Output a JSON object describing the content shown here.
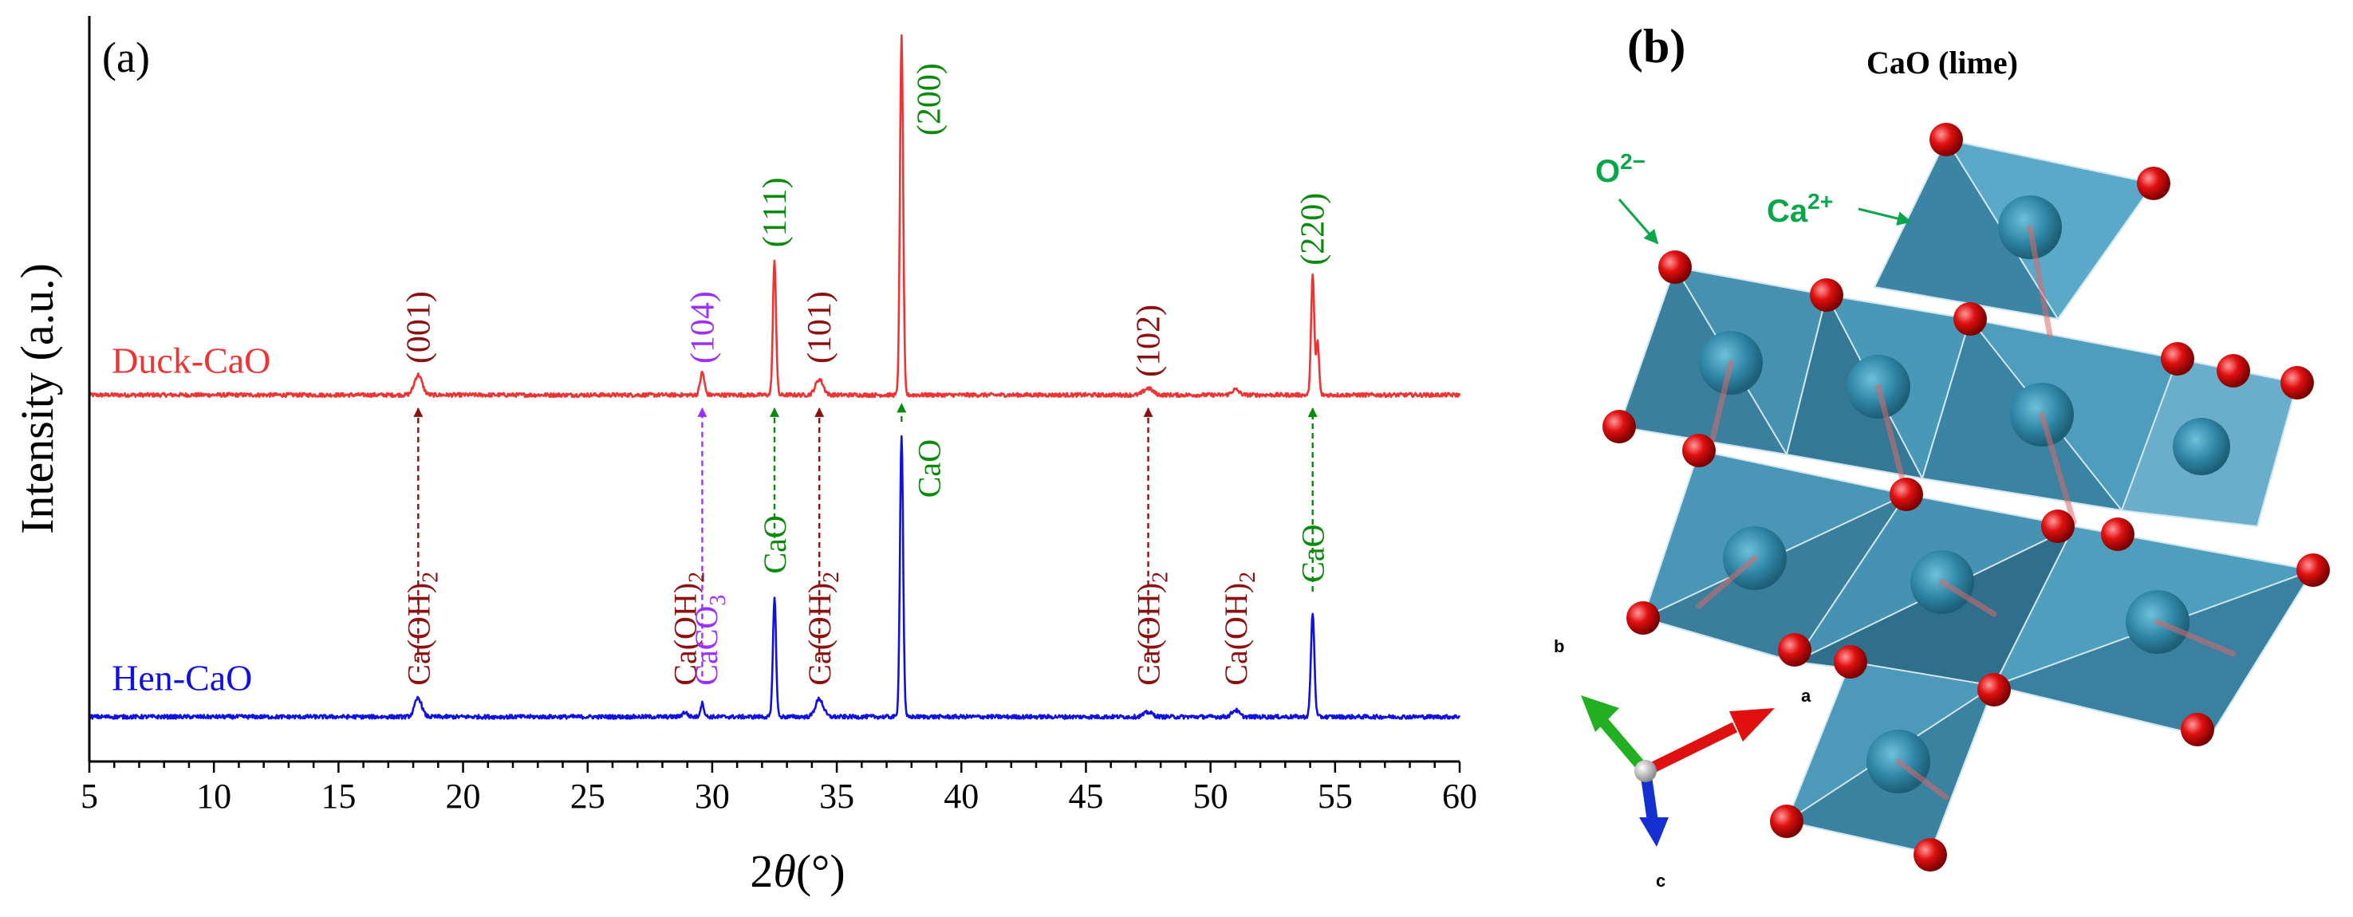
{
  "colors": {
    "duck": "#ee3333",
    "hen": "#1010e0",
    "caoth": "#8b1010",
    "calcite": "#9b30ff",
    "lime": "#0a8a0a",
    "axis": "#000000",
    "octa": "#3f8fb0",
    "oxygen": "#dd1010"
  },
  "chart_data": {
    "type": "line",
    "panel_label": "(a)",
    "xlabel": "2θ(°)",
    "ylabel": "Intensity (a.u.)",
    "xlim": [
      5,
      60
    ],
    "ylim": [
      -0.1,
      1.55
    ],
    "xticks": [
      "5",
      "10",
      "15",
      "20",
      "25",
      "30",
      "35",
      "40",
      "45",
      "50",
      "55",
      "60"
    ],
    "series": [
      {
        "name": "Duck-CaO",
        "color": "duck",
        "baseline": 0.72,
        "peaks": [
          {
            "x": 18.2,
            "h": 0.045,
            "w": 0.22
          },
          {
            "x": 29.6,
            "h": 0.05,
            "w": 0.12
          },
          {
            "x": 32.5,
            "h": 0.3,
            "w": 0.09
          },
          {
            "x": 34.3,
            "h": 0.035,
            "w": 0.22
          },
          {
            "x": 37.6,
            "h": 0.8,
            "w": 0.09
          },
          {
            "x": 47.5,
            "h": 0.015,
            "w": 0.25
          },
          {
            "x": 51.0,
            "h": 0.012,
            "w": 0.2
          },
          {
            "x": 54.1,
            "h": 0.27,
            "w": 0.09
          },
          {
            "x": 54.3,
            "h": 0.12,
            "w": 0.08
          }
        ]
      },
      {
        "name": "Hen-CaO",
        "color": "hen",
        "baseline": 0.0,
        "peaks": [
          {
            "x": 18.2,
            "h": 0.042,
            "w": 0.2
          },
          {
            "x": 28.9,
            "h": 0.01,
            "w": 0.15
          },
          {
            "x": 29.6,
            "h": 0.03,
            "w": 0.1
          },
          {
            "x": 32.5,
            "h": 0.265,
            "w": 0.09
          },
          {
            "x": 34.3,
            "h": 0.04,
            "w": 0.22
          },
          {
            "x": 37.6,
            "h": 0.63,
            "w": 0.09
          },
          {
            "x": 47.5,
            "h": 0.01,
            "w": 0.25
          },
          {
            "x": 51.0,
            "h": 0.015,
            "w": 0.2
          },
          {
            "x": 54.1,
            "h": 0.23,
            "w": 0.1
          }
        ]
      }
    ],
    "series_labels": [
      {
        "text": "Duck-CaO",
        "color": "duck",
        "x": 5.9,
        "y": 0.77
      },
      {
        "text": "Hen-CaO",
        "color": "hen",
        "x": 5.9,
        "y": 0.06
      }
    ],
    "arrows": [
      {
        "x": 18.2,
        "color": "caoth",
        "y1": 0.1,
        "y2": 0.69
      },
      {
        "x": 29.6,
        "color": "calcite",
        "y1": 0.09,
        "y2": 0.69
      },
      {
        "x": 32.5,
        "color": "lime",
        "y1": 0.4,
        "y2": 0.69
      },
      {
        "x": 34.3,
        "color": "caoth",
        "y1": 0.1,
        "y2": 0.69
      },
      {
        "x": 37.6,
        "color": "lime",
        "y1": 0.66,
        "y2": 0.7
      },
      {
        "x": 47.5,
        "color": "caoth",
        "y1": 0.1,
        "y2": 0.69
      },
      {
        "x": 54.1,
        "color": "lime",
        "y1": 0.28,
        "y2": 0.69
      }
    ],
    "hkl_labels": [
      {
        "text": "(001)",
        "x": 18.2,
        "y": 0.79,
        "color": "caoth"
      },
      {
        "text": "(104)",
        "x": 29.6,
        "y": 0.79,
        "color": "calcite"
      },
      {
        "text": "(111)",
        "x": 32.5,
        "y": 1.05,
        "color": "lime"
      },
      {
        "text": "(101)",
        "x": 34.3,
        "y": 0.79,
        "color": "caoth"
      },
      {
        "text": "(200)",
        "x": 38.7,
        "y": 1.3,
        "color": "lime"
      },
      {
        "text": "(102)",
        "x": 47.5,
        "y": 0.76,
        "color": "caoth"
      },
      {
        "text": "(220)",
        "x": 54.1,
        "y": 1.01,
        "color": "lime"
      }
    ],
    "phase_labels": [
      {
        "text": "Ca(OH)2",
        "main": "Ca(OH)",
        "sub": "2",
        "x": 18.2,
        "y": 0.07,
        "color": "caoth"
      },
      {
        "text": "Ca(OH)2",
        "main": "Ca(OH)",
        "sub": "2",
        "x": 28.9,
        "y": 0.07,
        "color": "caoth"
      },
      {
        "text": "CaCO3",
        "main": "CaCO",
        "sub": "3",
        "x": 29.75,
        "y": 0.07,
        "color": "calcite"
      },
      {
        "text": "CaO",
        "main": "CaO",
        "sub": "",
        "x": 32.5,
        "y": 0.32,
        "color": "lime"
      },
      {
        "text": "Ca(OH)2",
        "main": "Ca(OH)",
        "sub": "2",
        "x": 34.3,
        "y": 0.07,
        "color": "caoth"
      },
      {
        "text": "CaO",
        "main": "CaO",
        "sub": "",
        "x": 38.7,
        "y": 0.49,
        "color": "lime"
      },
      {
        "text": "Ca(OH)2",
        "main": "Ca(OH)",
        "sub": "2",
        "x": 47.5,
        "y": 0.07,
        "color": "caoth"
      },
      {
        "text": "Ca(OH)2",
        "main": "Ca(OH)",
        "sub": "2",
        "x": 51.0,
        "y": 0.07,
        "color": "caoth"
      },
      {
        "text": "CaO",
        "main": "CaO",
        "sub": "",
        "x": 54.1,
        "y": 0.3,
        "color": "lime"
      }
    ]
  },
  "structure": {
    "panel_label": "(b)",
    "title": "CaO (lime)",
    "oxygen_label": "O",
    "oxygen_charge": "2−",
    "calcium_label": "Ca",
    "calcium_charge": "2+",
    "axis_a": "a",
    "axis_b": "b",
    "axis_c": "c"
  }
}
